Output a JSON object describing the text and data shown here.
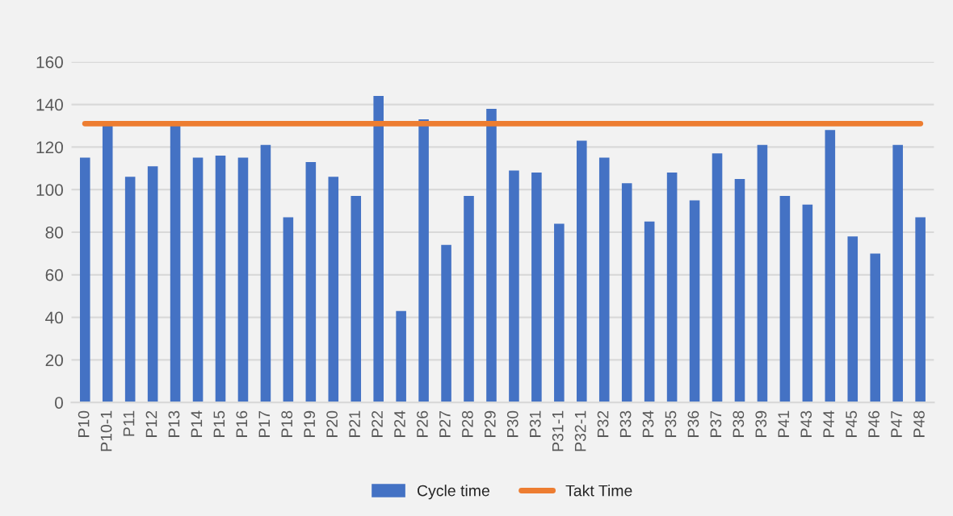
{
  "chart_data": {
    "type": "bar",
    "categories": [
      "P10",
      "P10-1",
      "P11",
      "P12",
      "P13",
      "P14",
      "P15",
      "P16",
      "P17",
      "P18",
      "P19",
      "P20",
      "P21",
      "P22",
      "P24",
      "P26",
      "P27",
      "P28",
      "P29",
      "P30",
      "P31",
      "P31-1",
      "P32-1",
      "P32",
      "P33",
      "P34",
      "P35",
      "P36",
      "P37",
      "P38",
      "P39",
      "P41",
      "P43",
      "P44",
      "P45",
      "P46",
      "P47",
      "P48"
    ],
    "series": [
      {
        "name": "Cycle time",
        "color": "#4472c4",
        "values": [
          115,
          130,
          106,
          111,
          130,
          115,
          116,
          115,
          121,
          87,
          113,
          106,
          97,
          144,
          43,
          133,
          74,
          97,
          138,
          109,
          108,
          84,
          123,
          115,
          103,
          85,
          108,
          95,
          117,
          105,
          121,
          97,
          93,
          128,
          78,
          70,
          121,
          87
        ]
      },
      {
        "name": "Takt Time",
        "type": "line",
        "color": "#ed7d31",
        "values": [
          131,
          131,
          131,
          131,
          131,
          131,
          131,
          131,
          131,
          131,
          131,
          131,
          131,
          131,
          131,
          131,
          131,
          131,
          131,
          131,
          131,
          131,
          131,
          131,
          131,
          131,
          131,
          131,
          131,
          131,
          131,
          131,
          131,
          131,
          131,
          131,
          131,
          131
        ]
      }
    ],
    "ylim": [
      0,
      160
    ],
    "yticks": [
      0,
      20,
      40,
      60,
      80,
      100,
      120,
      140,
      160
    ],
    "grid": "y",
    "legend": "bottom"
  }
}
